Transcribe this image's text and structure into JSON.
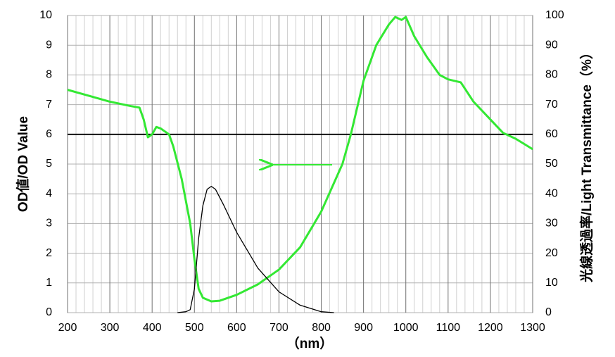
{
  "chart_data": {
    "type": "line",
    "ylabel": "OD値/OD Value",
    "y2label": "光線透過率/Light Transmittance（%）",
    "xlabel": "（nm）",
    "xlim": [
      200,
      1300
    ],
    "xticks": [
      200,
      300,
      400,
      500,
      600,
      700,
      800,
      900,
      1000,
      1100,
      1200,
      1300
    ],
    "ylim": [
      0,
      10
    ],
    "yticks": [
      0,
      1,
      2,
      3,
      4,
      5,
      6,
      7,
      8,
      9,
      10
    ],
    "y2lim": [
      0,
      100
    ],
    "y2ticks": [
      0,
      10,
      20,
      30,
      40,
      50,
      60,
      70,
      80,
      90,
      100
    ],
    "grid": true,
    "reference_line": 6,
    "series": [
      {
        "color": "#33e833",
        "axis": "y",
        "x": [
          200,
          250,
          300,
          350,
          370,
          380,
          390,
          400,
          410,
          420,
          440,
          450,
          470,
          490,
          500,
          510,
          520,
          540,
          560,
          600,
          650,
          700,
          750,
          800,
          850,
          870,
          900,
          930,
          960,
          975,
          990,
          1000,
          1020,
          1050,
          1080,
          1100,
          1130,
          1160,
          1200,
          1230,
          1260,
          1300
        ],
        "values": [
          7.5,
          7.3,
          7.1,
          6.95,
          6.9,
          6.5,
          5.9,
          6.0,
          6.25,
          6.2,
          6.0,
          5.6,
          4.5,
          3.0,
          1.8,
          0.8,
          0.5,
          0.38,
          0.4,
          0.6,
          0.95,
          1.45,
          2.2,
          3.4,
          5.0,
          6.0,
          7.8,
          9.0,
          9.7,
          9.95,
          9.85,
          9.95,
          9.3,
          8.6,
          8.0,
          7.85,
          7.75,
          7.1,
          6.5,
          6.05,
          5.85,
          5.5
        ]
      },
      {
        "color": "#000000",
        "axis": "y2",
        "x": [
          460,
          480,
          490,
          500,
          510,
          520,
          530,
          540,
          550,
          570,
          600,
          650,
          700,
          750,
          800,
          830
        ],
        "values": [
          0,
          0.3,
          1,
          8,
          25,
          36,
          41.5,
          42.5,
          41.5,
          36,
          27,
          15,
          7,
          2.5,
          0.3,
          0
        ]
      }
    ]
  }
}
